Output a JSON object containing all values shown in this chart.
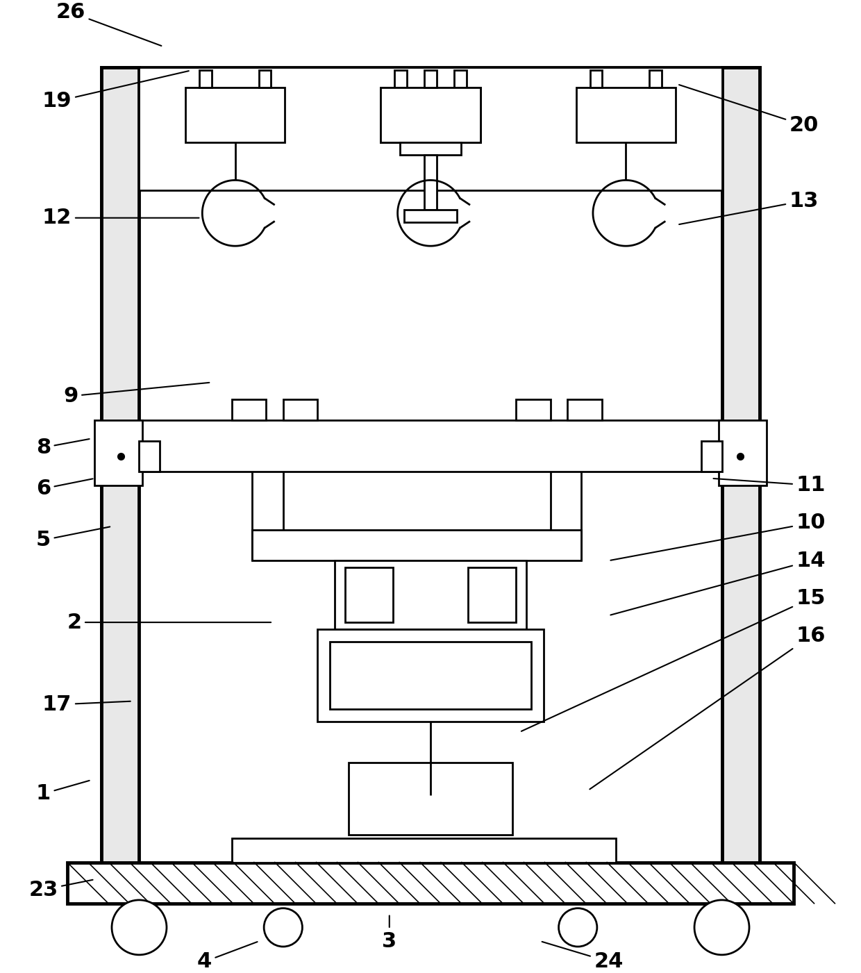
{
  "bg_color": "#ffffff",
  "line_color": "#000000",
  "lw": 2.0,
  "lw_thick": 3.5,
  "fig_width": 12.4,
  "fig_height": 14.01
}
